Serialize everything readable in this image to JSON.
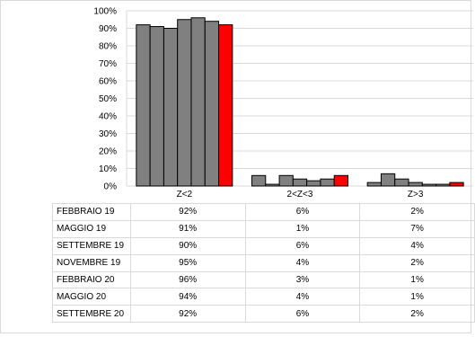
{
  "chart_data": {
    "type": "bar",
    "categories": [
      "Z<2",
      "2<Z<3",
      "Z>3"
    ],
    "series": [
      {
        "name": "FEBBRAIO 19",
        "values": [
          92,
          6,
          2
        ],
        "display": [
          "92%",
          "6%",
          "2%"
        ]
      },
      {
        "name": "MAGGIO 19",
        "values": [
          91,
          1,
          7
        ],
        "display": [
          "91%",
          "1%",
          "7%"
        ]
      },
      {
        "name": "SETTEMBRE 19",
        "values": [
          90,
          6,
          4
        ],
        "display": [
          "90%",
          "6%",
          "4%"
        ]
      },
      {
        "name": "NOVEMBRE 19",
        "values": [
          95,
          4,
          2
        ],
        "display": [
          "95%",
          "4%",
          "2%"
        ]
      },
      {
        "name": "FEBBRAIO 20",
        "values": [
          96,
          3,
          1
        ],
        "display": [
          "96%",
          "3%",
          "1%"
        ]
      },
      {
        "name": "MAGGIO 20",
        "values": [
          94,
          4,
          1
        ],
        "display": [
          "94%",
          "4%",
          "1%"
        ]
      },
      {
        "name": "SETTEMBRE 20",
        "values": [
          92,
          6,
          2
        ],
        "display": [
          "92%",
          "6%",
          "2%"
        ]
      }
    ],
    "ylim": [
      0,
      100
    ],
    "yticks": [
      "0%",
      "10%",
      "20%",
      "30%",
      "40%",
      "50%",
      "60%",
      "70%",
      "80%",
      "90%",
      "100%"
    ],
    "grid": true,
    "colors": {
      "default": "#808080",
      "highlight": "#ff0000",
      "edge": "#000000",
      "grid": "#d9d9d9"
    }
  }
}
